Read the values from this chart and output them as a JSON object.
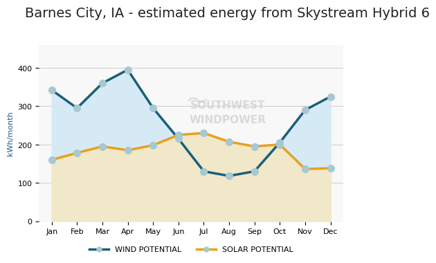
{
  "title": "Barnes City, IA - estimated energy from Skystream Hybrid 6",
  "ylabel": "kWh/month",
  "months": [
    "Jan",
    "Feb",
    "Mar",
    "Apr",
    "May",
    "Jun",
    "Jul",
    "Aug",
    "Sep",
    "Oct",
    "Nov",
    "Dec"
  ],
  "wind_potential": [
    342,
    295,
    360,
    395,
    295,
    215,
    130,
    118,
    130,
    205,
    290,
    325
  ],
  "solar_potential": [
    160,
    178,
    195,
    185,
    198,
    225,
    230,
    207,
    195,
    200,
    136,
    138
  ],
  "wind_color": "#1a5f7a",
  "solar_color": "#e8a020",
  "wind_fill_color": "#d6eaf5",
  "solar_fill_color": "#f0e8c8",
  "background_color": "#ffffff",
  "plot_bg_color": "#f8f8f8",
  "ylim": [
    0,
    460
  ],
  "yticks": [
    0,
    100,
    200,
    300,
    400
  ],
  "legend_wind": "WIND POTENTIAL",
  "legend_solar": "SOLAR POTENTIAL",
  "watermark_text": "SOUTHWEST\nWINDPOWER",
  "title_fontsize": 14,
  "axis_label_fontsize": 8,
  "tick_fontsize": 8,
  "legend_fontsize": 8,
  "marker_color": "#a8c8d0",
  "marker_size": 7
}
